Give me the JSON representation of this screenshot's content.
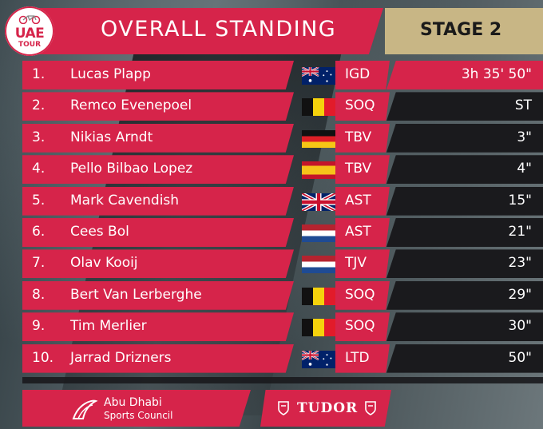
{
  "header": {
    "title": "OVERALL STANDING",
    "stage": "STAGE 2",
    "logo_line1": "UAE",
    "logo_line2": "TOUR"
  },
  "standings": [
    {
      "pos": "1.",
      "name": "Lucas Plapp",
      "flag": "australia-flag",
      "team": "IGD",
      "time": "3h 35' 50\""
    },
    {
      "pos": "2.",
      "name": "Remco Evenepoel",
      "flag": "belgium-flag",
      "team": "SOQ",
      "time": "ST"
    },
    {
      "pos": "3.",
      "name": "Nikias Arndt",
      "flag": "germany-flag",
      "team": "TBV",
      "time": "3\""
    },
    {
      "pos": "4.",
      "name": "Pello Bilbao Lopez",
      "flag": "spain-flag",
      "team": "TBV",
      "time": "4\""
    },
    {
      "pos": "5.",
      "name": "Mark Cavendish",
      "flag": "uk-flag",
      "team": "AST",
      "time": "15\""
    },
    {
      "pos": "6.",
      "name": "Cees Bol",
      "flag": "netherlands-flag",
      "team": "AST",
      "time": "21\""
    },
    {
      "pos": "7.",
      "name": "Olav Kooij",
      "flag": "netherlands-flag",
      "team": "TJV",
      "time": "23\""
    },
    {
      "pos": "8.",
      "name": "Bert Van Lerberghe",
      "flag": "belgium-flag",
      "team": "SOQ",
      "time": "29\""
    },
    {
      "pos": "9.",
      "name": "Tim Merlier",
      "flag": "belgium-flag",
      "team": "SOQ",
      "time": "30\""
    },
    {
      "pos": "10.",
      "name": "Jarrad Drizners",
      "flag": "australia-flag",
      "team": "LTD",
      "time": "50\""
    }
  ],
  "footer": {
    "sponsor1_line1": "Abu Dhabi",
    "sponsor1_line2": "Sports Council",
    "sponsor2": "TUDOR"
  },
  "colors": {
    "accent": "#d6244a",
    "gold": "#c8b685",
    "dark": "#1a1a1d"
  }
}
